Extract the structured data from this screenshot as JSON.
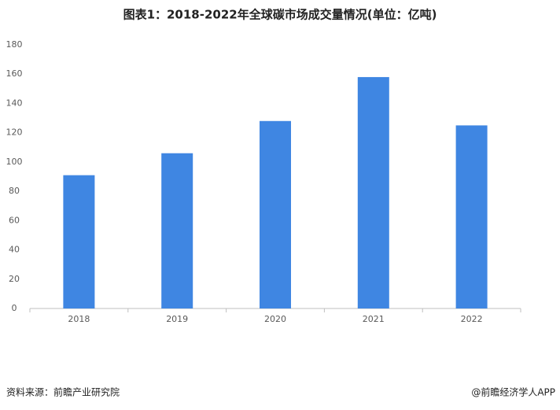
{
  "chart_data": {
    "type": "bar",
    "title": "图表1：2018-2022年全球碳市场成交量情况(单位：亿吨)",
    "categories": [
      "2018",
      "2019",
      "2020",
      "2021",
      "2022"
    ],
    "values": [
      91,
      106,
      128,
      158,
      125
    ],
    "color": "#3f86e2",
    "ylim": [
      0,
      180
    ],
    "yticks": [
      0,
      20,
      40,
      60,
      80,
      100,
      120,
      140,
      160,
      180
    ],
    "grid": false
  },
  "footer": {
    "source": "资料来源：前瞻产业研究院",
    "brand": "@前瞻经济学人APP"
  }
}
